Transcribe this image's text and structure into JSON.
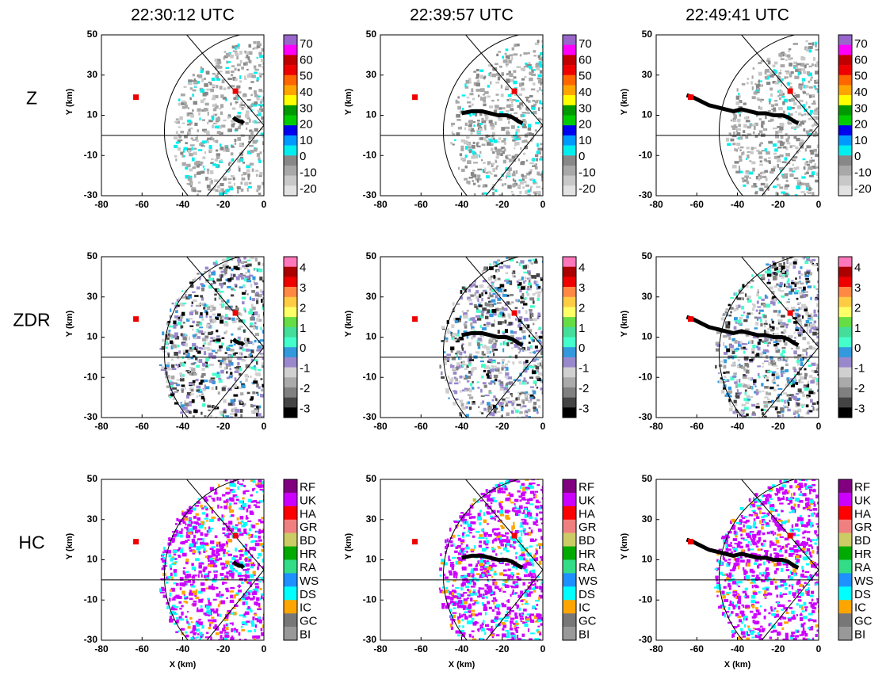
{
  "columns": [
    {
      "title": "22:30:12 UTC",
      "track": {
        "x": [
          -15,
          -14,
          -12,
          -11,
          -10
        ],
        "y": [
          9,
          8,
          7,
          7,
          6
        ]
      }
    },
    {
      "title": "22:39:57 UTC",
      "track": {
        "x": [
          -40,
          -35,
          -30,
          -26,
          -22,
          -18,
          -15,
          -12,
          -10
        ],
        "y": [
          11,
          12,
          12,
          11,
          10,
          10,
          9,
          7,
          6
        ]
      }
    },
    {
      "title": "22:49:41 UTC",
      "track": {
        "x": [
          -65,
          -62,
          -58,
          -54,
          -50,
          -46,
          -42,
          -38,
          -34,
          -30,
          -26,
          -22,
          -18,
          -15,
          -12,
          -10
        ],
        "y": [
          20,
          19,
          17,
          15,
          14,
          13,
          12,
          13,
          12,
          11,
          11,
          10,
          10,
          9,
          7,
          6
        ]
      }
    }
  ],
  "rows": [
    {
      "label": "Z",
      "colorbar": {
        "colors": [
          "#9966cc",
          "#ff00ff",
          "#c00000",
          "#ee0000",
          "#ff6600",
          "#ffa500",
          "#ffff00",
          "#009900",
          "#00cc00",
          "#0000ee",
          "#0099ff",
          "#00eeee",
          "#888888",
          "#a8a8a8",
          "#c8c8c8",
          "#e2e2e2"
        ],
        "labels": [
          70,
          60,
          50,
          40,
          30,
          20,
          10,
          0,
          -10,
          -20
        ]
      }
    },
    {
      "label": "ZDR",
      "colorbar": {
        "colors": [
          "#ff77bb",
          "#aa0000",
          "#ee0000",
          "#ff8844",
          "#ffcc44",
          "#ffff66",
          "#66dd44",
          "#44dd99",
          "#44ffcc",
          "#3399dd",
          "#9988cc",
          "#d0d0d0",
          "#aaaaaa",
          "#808080",
          "#444444",
          "#000000"
        ],
        "labels": [
          4,
          3,
          2,
          1,
          0,
          -1,
          -2,
          -3
        ]
      }
    },
    {
      "label": "HC",
      "colorbar": {
        "colors": [
          "#800080",
          "#cc00ff",
          "#ff0000",
          "#f08080",
          "#cccc66",
          "#00aa00",
          "#33dd88",
          "#1e90ff",
          "#00ffff",
          "#ffa500",
          "#777777",
          "#999999"
        ],
        "labels": [
          "RF",
          "UK",
          "HA",
          "GR",
          "BD",
          "HR",
          "RA",
          "WS",
          "DS",
          "IC",
          "GC",
          "BI"
        ]
      }
    }
  ],
  "y_label": "Y (km)",
  "x_label": "X (km)",
  "xlim": [
    -80,
    0
  ],
  "ylim": [
    -30,
    50
  ],
  "xticks": [
    -80,
    -60,
    -40,
    -20,
    0
  ],
  "yticks": [
    50,
    30,
    10,
    -10,
    -30
  ],
  "markers": {
    "x": [
      -63,
      -14
    ],
    "y": [
      19,
      22
    ],
    "color": "#ee0000"
  }
}
